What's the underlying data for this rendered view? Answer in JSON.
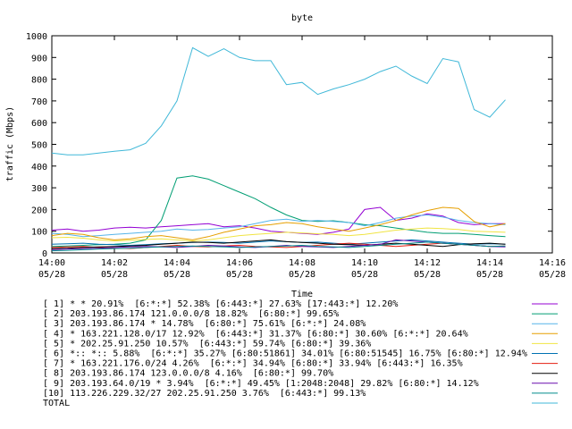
{
  "chart_data": {
    "type": "line",
    "title": "byte",
    "xlabel": "Time",
    "ylabel": "traffic (Mbps)",
    "ylim": [
      0,
      1000
    ],
    "xlim": [
      "14:00",
      "14:16"
    ],
    "grid": false,
    "legend_position": "below",
    "y_ticks": [
      0,
      100,
      200,
      300,
      400,
      500,
      600,
      700,
      800,
      900,
      1000
    ],
    "x_ticks": [
      {
        "time": "14:00",
        "date": "05/28"
      },
      {
        "time": "14:02",
        "date": "05/28"
      },
      {
        "time": "14:04",
        "date": "05/28"
      },
      {
        "time": "14:06",
        "date": "05/28"
      },
      {
        "time": "14:08",
        "date": "05/28"
      },
      {
        "time": "14:10",
        "date": "05/28"
      },
      {
        "time": "14:12",
        "date": "05/28"
      },
      {
        "time": "14:14",
        "date": "05/28"
      },
      {
        "time": "14:16",
        "date": "05/28"
      }
    ],
    "x": [
      "14:00:00",
      "14:00:30",
      "14:01:00",
      "14:01:30",
      "14:02:00",
      "14:02:30",
      "14:03:00",
      "14:03:30",
      "14:04:00",
      "14:04:30",
      "14:05:00",
      "14:05:30",
      "14:06:00",
      "14:06:30",
      "14:07:00",
      "14:07:30",
      "14:08:00",
      "14:08:30",
      "14:09:00",
      "14:09:30",
      "14:10:00",
      "14:10:30",
      "14:11:00",
      "14:11:30",
      "14:12:00",
      "14:12:30",
      "14:13:00",
      "14:13:30",
      "14:14:00",
      "14:14:30"
    ],
    "series": [
      {
        "name": "[ 1] * * 20.91%  [6:*:*] 52.38% [6:443:*] 27.63% [17:443:*] 12.20%",
        "color": "#9400d3",
        "values": [
          105,
          110,
          100,
          105,
          115,
          118,
          115,
          120,
          125,
          130,
          135,
          120,
          125,
          115,
          100,
          95,
          90,
          85,
          95,
          110,
          200,
          210,
          150,
          160,
          180,
          170,
          140,
          130,
          135,
          135
        ]
      },
      {
        "name": "[ 2] 203.193.86.174 121.0.0.0/8 18.82%  [6:80:*] 99.65%",
        "color": "#009e73",
        "values": [
          30,
          32,
          35,
          38,
          40,
          45,
          60,
          150,
          345,
          355,
          340,
          310,
          280,
          250,
          210,
          175,
          150,
          145,
          148,
          140,
          130,
          125,
          115,
          105,
          95,
          90,
          90,
          85,
          80,
          75
        ]
      },
      {
        "name": "[ 3] 203.193.86.174 * 14.78%  [6:80:*] 75.61% [6:*:*] 24.08%",
        "color": "#56b4e9",
        "values": [
          90,
          85,
          75,
          80,
          85,
          90,
          95,
          100,
          110,
          105,
          108,
          115,
          120,
          135,
          150,
          155,
          145,
          150,
          145,
          140,
          125,
          140,
          160,
          170,
          175,
          165,
          150,
          140,
          135,
          130
        ]
      },
      {
        "name": "[ 4] * 163.221.128.0/17 12.92%  [6:443:*] 31.37% [6:80:*] 30.60% [6:*:*] 20.64%",
        "color": "#e69f00",
        "values": [
          80,
          90,
          85,
          70,
          60,
          65,
          75,
          80,
          70,
          60,
          75,
          95,
          110,
          125,
          130,
          140,
          135,
          120,
          110,
          100,
          115,
          130,
          150,
          175,
          195,
          210,
          205,
          145,
          120,
          135
        ]
      },
      {
        "name": "[ 5] * 202.25.91.250 10.57%  [6:443:*] 59.74% [6:80:*] 39.36%",
        "color": "#f0e442",
        "values": [
          70,
          72,
          68,
          60,
          55,
          58,
          62,
          65,
          60,
          55,
          60,
          70,
          80,
          85,
          90,
          95,
          92,
          88,
          85,
          80,
          85,
          95,
          105,
          110,
          115,
          112,
          108,
          100,
          98,
          95
        ]
      },
      {
        "name": "[ 6] *:: *:: 5.88%  [6:*:*] 35.27% [6:80:51861] 34.01% [6:80:51545] 16.75% [6:80:*] 12.94%",
        "color": "#0072b2",
        "values": [
          40,
          42,
          45,
          40,
          38,
          35,
          38,
          42,
          45,
          48,
          50,
          48,
          45,
          50,
          55,
          52,
          48,
          50,
          45,
          40,
          45,
          50,
          55,
          60,
          55,
          50,
          45,
          40,
          42,
          40
        ]
      },
      {
        "name": "[ 7] * 163.221.176.0/24 4.26%  [6:*:*] 34.94% [6:80:*] 33.94% [6:443:*] 16.35%",
        "color": "#e51e10",
        "values": [
          25,
          28,
          30,
          25,
          22,
          20,
          25,
          30,
          35,
          30,
          28,
          32,
          35,
          30,
          28,
          25,
          30,
          35,
          40,
          45,
          40,
          35,
          30,
          35,
          40,
          45,
          40,
          35,
          30,
          32
        ]
      },
      {
        "name": "[ 8] 203.193.86.174 123.0.0.0/8 4.16%  [6:80:*] 99.70%",
        "color": "#000000",
        "values": [
          20,
          22,
          25,
          28,
          30,
          32,
          35,
          40,
          45,
          50,
          48,
          45,
          50,
          55,
          60,
          52,
          48,
          45,
          40,
          38,
          35,
          40,
          45,
          40,
          35,
          30,
          38,
          42,
          45,
          40
        ]
      },
      {
        "name": "[ 9] 203.193.64.0/19 * 3.94%  [6:*:*] 49.45% [1:2048:2048] 29.82% [6:80:*] 14.12%",
        "color": "#6a0dad",
        "values": [
          15,
          18,
          20,
          22,
          25,
          28,
          30,
          28,
          25,
          30,
          35,
          32,
          28,
          25,
          30,
          35,
          30,
          28,
          25,
          30,
          35,
          40,
          60,
          55,
          50,
          45,
          40,
          35,
          30,
          28
        ]
      },
      {
        "name": "[10] 113.226.229.32/27 202.25.91.250 3.76%  [6:443:*] 99.13%",
        "color": "#008b8b",
        "values": [
          10,
          12,
          15,
          18,
          20,
          22,
          25,
          28,
          30,
          32,
          30,
          28,
          25,
          28,
          30,
          32,
          35,
          30,
          28,
          25,
          30,
          35,
          40,
          45,
          50,
          45,
          40,
          35,
          30,
          32
        ]
      },
      {
        "name": "TOTAL",
        "color": "#40b8d8",
        "values": [
          460,
          452,
          452,
          460,
          468,
          475,
          505,
          585,
          700,
          945,
          905,
          940,
          900,
          885,
          885,
          775,
          785,
          730,
          755,
          775,
          800,
          835,
          860,
          815,
          780,
          895,
          880,
          660,
          625,
          705
        ]
      }
    ]
  }
}
